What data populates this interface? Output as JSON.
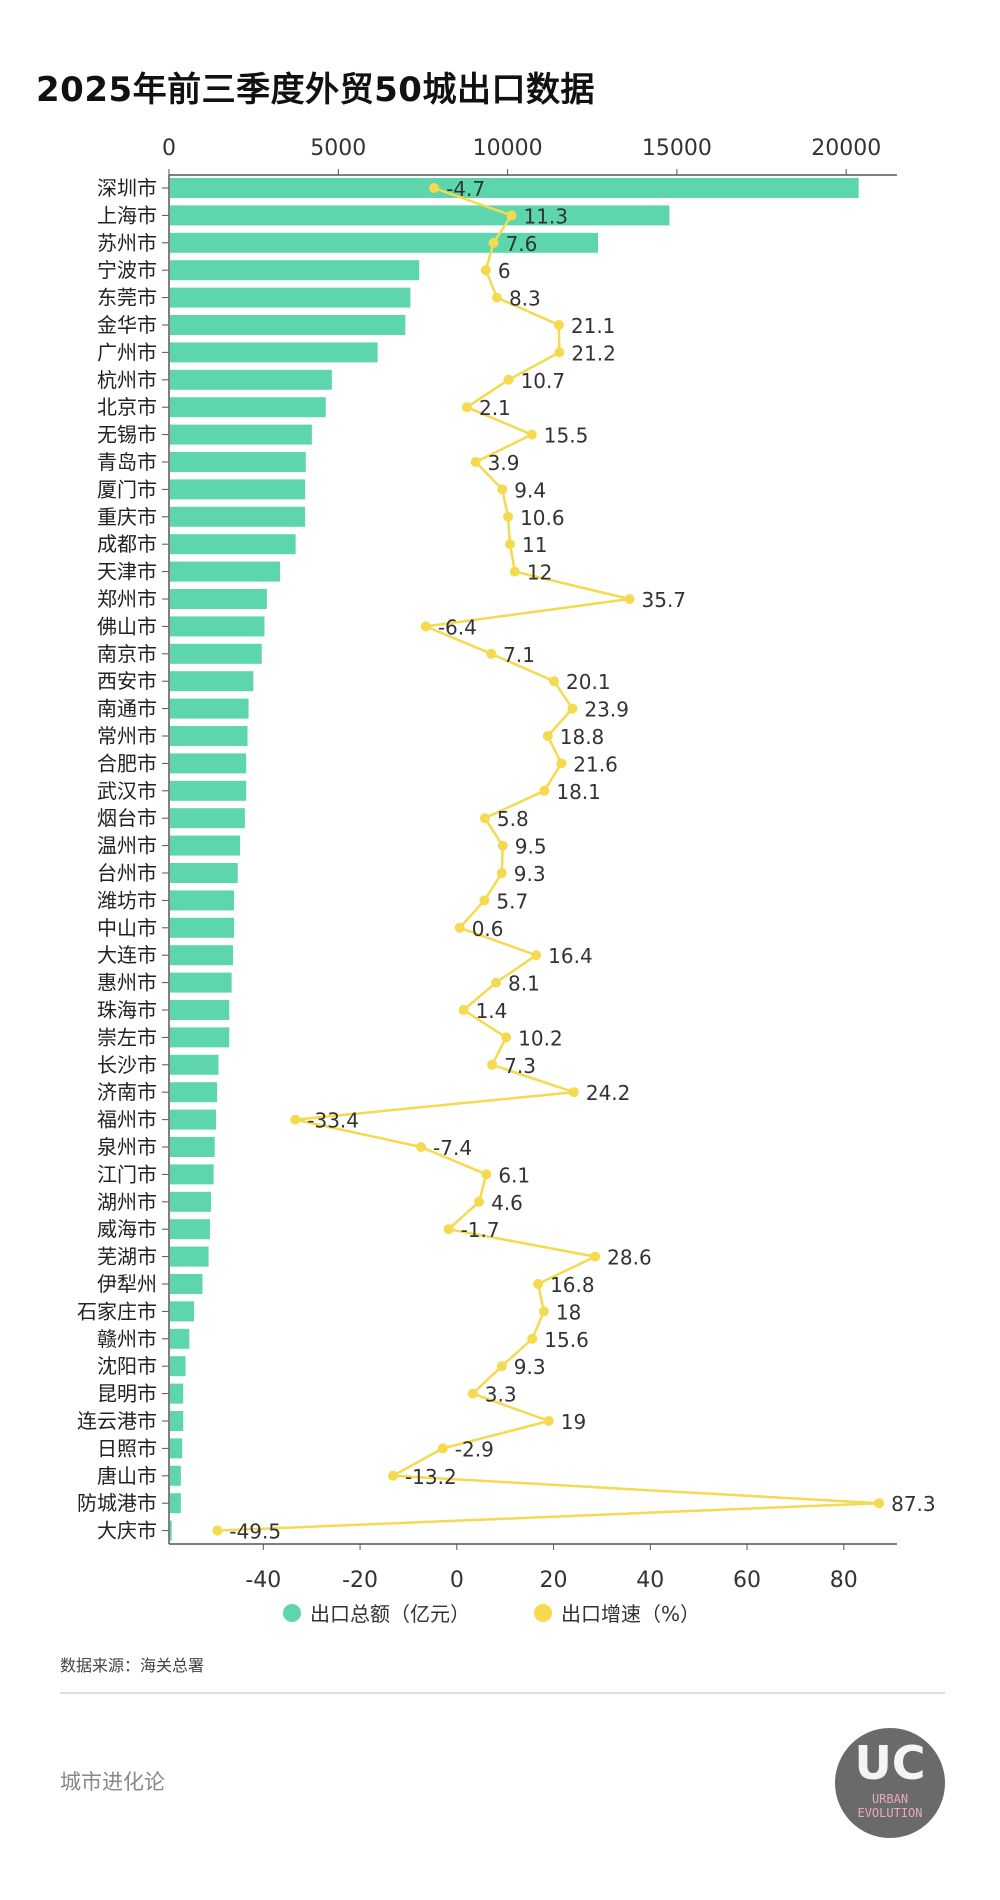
{
  "title": "2025年前三季度外贸50城出口数据",
  "source": "数据来源：海关总署",
  "brand": "城市进化论",
  "logo_text": {
    "mark": "UC",
    "line1": "URBAN",
    "line2": "EVOLUTION"
  },
  "chart_data": {
    "type": "bar+line",
    "title": "2025年前三季度外贸50城出口数据",
    "categories": [
      "深圳市",
      "上海市",
      "苏州市",
      "宁波市",
      "东莞市",
      "金华市",
      "广州市",
      "杭州市",
      "北京市",
      "无锡市",
      "青岛市",
      "厦门市",
      "重庆市",
      "成都市",
      "天津市",
      "郑州市",
      "佛山市",
      "南京市",
      "西安市",
      "南通市",
      "常州市",
      "合肥市",
      "武汉市",
      "烟台市",
      "温州市",
      "台州市",
      "潍坊市",
      "中山市",
      "大连市",
      "惠州市",
      "珠海市",
      "崇左市",
      "长沙市",
      "济南市",
      "福州市",
      "泉州市",
      "江门市",
      "湖州市",
      "威海市",
      "芜湖市",
      "伊犁州",
      "石家庄市",
      "赣州市",
      "沈阳市",
      "昆明市",
      "连云港市",
      "日照市",
      "唐山市",
      "防城港市",
      "大庆市"
    ],
    "series": [
      {
        "name": "出口总额（亿元）",
        "type": "bar",
        "axis": "top",
        "color": "#5dd6ae",
        "values": [
          20340,
          14750,
          12640,
          7360,
          7100,
          6950,
          6130,
          4780,
          4600,
          4190,
          4010,
          3990,
          3990,
          3710,
          3250,
          2860,
          2790,
          2710,
          2460,
          2320,
          2290,
          2250,
          2250,
          2210,
          2070,
          2000,
          1890,
          1890,
          1860,
          1820,
          1750,
          1750,
          1430,
          1390,
          1360,
          1320,
          1290,
          1210,
          1180,
          1140,
          960,
          710,
          570,
          460,
          390,
          390,
          360,
          320,
          320,
          50
        ]
      },
      {
        "name": "出口增速（%）",
        "type": "line",
        "axis": "bottom",
        "color": "#f5d94e",
        "values": [
          -4.7,
          11.3,
          7.6,
          6,
          8.3,
          21.1,
          21.2,
          10.7,
          2.1,
          15.5,
          3.9,
          9.4,
          10.6,
          11,
          12,
          35.7,
          -6.4,
          7.1,
          20.1,
          23.9,
          18.8,
          21.6,
          18.1,
          5.8,
          9.5,
          9.3,
          5.7,
          0.6,
          16.4,
          8.1,
          1.4,
          10.2,
          7.3,
          24.2,
          -33.4,
          -7.4,
          6.1,
          4.6,
          -1.7,
          28.6,
          16.8,
          18,
          15.6,
          9.3,
          3.3,
          19,
          -2.9,
          -13.2,
          87.3,
          -49.5
        ],
        "labels": [
          "-4.7",
          "11.3",
          "7.6",
          "6",
          "8.3",
          "21.1",
          "21.2",
          "10.7",
          "2.1",
          "15.5",
          "3.9",
          "9.4",
          "10.6",
          "11",
          "12",
          "35.7",
          "-6.4",
          "7.1",
          "20.1",
          "23.9",
          "18.8",
          "21.6",
          "18.1",
          "5.8",
          "9.5",
          "9.3",
          "5.7",
          "0.6",
          "16.4",
          "8.1",
          "1.4",
          "10.2",
          "7.3",
          "24.2",
          "-33.4",
          "-7.4",
          "6.1",
          "4.6",
          "-1.7",
          "28.6",
          "16.8",
          "18",
          "15.6",
          "9.3",
          "3.3",
          "19",
          "-2.9",
          "-13.2",
          "87.3",
          "-49.5"
        ]
      }
    ],
    "top_axis": {
      "range": [
        0,
        21500
      ],
      "ticks": [
        "0",
        "5000",
        "10000",
        "15000",
        "20000"
      ],
      "tick_values": [
        0,
        5000,
        10000,
        15000,
        20000
      ]
    },
    "bottom_axis": {
      "range": [
        -59.5,
        91
      ],
      "ticks": [
        "-40",
        "-20",
        "0",
        "20",
        "40",
        "60",
        "80"
      ],
      "tick_values": [
        -40,
        -20,
        0,
        20,
        40,
        60,
        80
      ]
    },
    "legend": {
      "position": "bottom",
      "items": [
        "出口总额（亿元）",
        "出口增速（%）"
      ]
    },
    "grid": false
  }
}
